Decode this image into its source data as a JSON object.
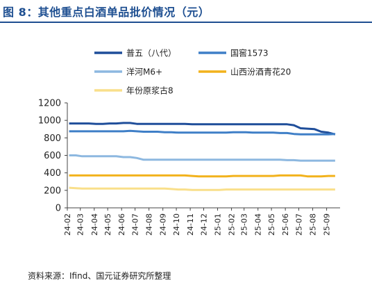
{
  "figure": {
    "title": "图 8：其他重点白酒单品批价情况（元）",
    "source": "资料来源：Ifind、国元证券研究所整理"
  },
  "chart_data": {
    "type": "line",
    "title": "",
    "xlabel": "",
    "ylabel": "",
    "ylim": [
      0,
      1200
    ],
    "y_ticks": [
      0,
      200,
      400,
      600,
      800,
      1000,
      1200
    ],
    "x_tick_labels": [
      "24-02",
      "24-03",
      "24-04",
      "24-05",
      "24-06",
      "24-07",
      "24-08",
      "24-09",
      "24-10",
      "24-11",
      "24-12",
      "25-01",
      "25-02",
      "25-03",
      "25-04",
      "25-05",
      "25-06",
      "25-07",
      "25-08",
      "25-09"
    ],
    "grid": false,
    "legend_position": "top",
    "series": [
      {
        "name": "普五（八代）",
        "color": "#1f4e9a",
        "x": [
          "24-02-05",
          "24-02-20",
          "24-03-05",
          "24-03-20",
          "24-04-05",
          "24-04-20",
          "24-05-05",
          "24-05-20",
          "24-06-05",
          "24-06-20",
          "24-07-05",
          "24-07-20",
          "24-08-05",
          "24-08-20",
          "24-09-05",
          "24-09-20",
          "24-10-05",
          "24-10-20",
          "24-11-05",
          "24-11-20",
          "24-12-05",
          "24-12-20",
          "25-01-05",
          "25-01-20",
          "25-02-05",
          "25-02-20",
          "25-03-05",
          "25-03-20",
          "25-04-05",
          "25-04-20",
          "25-05-05",
          "25-05-20",
          "25-06-05",
          "25-06-20",
          "25-07-05",
          "25-07-20",
          "25-08-05",
          "25-08-20",
          "25-09-05",
          "25-09-20"
        ],
        "values": [
          965,
          965,
          965,
          965,
          960,
          960,
          965,
          965,
          970,
          970,
          960,
          960,
          960,
          960,
          960,
          960,
          960,
          960,
          955,
          955,
          955,
          955,
          955,
          955,
          955,
          955,
          955,
          955,
          955,
          955,
          955,
          955,
          955,
          945,
          910,
          905,
          900,
          870,
          860,
          840
        ]
      },
      {
        "name": "国窖1573",
        "color": "#3f7fc7",
        "x": [
          "24-02-05",
          "24-02-20",
          "24-03-05",
          "24-03-20",
          "24-04-05",
          "24-04-20",
          "24-05-05",
          "24-05-20",
          "24-06-05",
          "24-06-20",
          "24-07-05",
          "24-07-20",
          "24-08-05",
          "24-08-20",
          "24-09-05",
          "24-09-20",
          "24-10-05",
          "24-10-20",
          "24-11-05",
          "24-11-20",
          "24-12-05",
          "24-12-20",
          "25-01-05",
          "25-01-20",
          "25-02-05",
          "25-02-20",
          "25-03-05",
          "25-03-20",
          "25-04-05",
          "25-04-20",
          "25-05-05",
          "25-05-20",
          "25-06-05",
          "25-06-20",
          "25-07-05",
          "25-07-20",
          "25-08-05",
          "25-08-20",
          "25-09-05",
          "25-09-20"
        ],
        "values": [
          875,
          875,
          875,
          875,
          875,
          875,
          875,
          875,
          875,
          880,
          875,
          870,
          870,
          870,
          865,
          865,
          860,
          860,
          860,
          860,
          860,
          860,
          860,
          860,
          865,
          865,
          865,
          860,
          860,
          860,
          860,
          855,
          855,
          845,
          840,
          840,
          840,
          840,
          840,
          845
        ]
      },
      {
        "name": "洋河M6+",
        "color": "#8db8e0",
        "x": [
          "24-02-05",
          "24-02-20",
          "24-03-05",
          "24-03-20",
          "24-04-05",
          "24-04-20",
          "24-05-05",
          "24-05-20",
          "24-06-05",
          "24-06-20",
          "24-07-05",
          "24-07-20",
          "24-08-05",
          "24-08-20",
          "24-09-05",
          "24-09-20",
          "24-10-05",
          "24-10-20",
          "24-11-05",
          "24-11-20",
          "24-12-05",
          "24-12-20",
          "25-01-05",
          "25-01-20",
          "25-02-05",
          "25-02-20",
          "25-03-05",
          "25-03-20",
          "25-04-05",
          "25-04-20",
          "25-05-05",
          "25-05-20",
          "25-06-05",
          "25-06-20",
          "25-07-05",
          "25-07-20",
          "25-08-05",
          "25-08-20",
          "25-09-05",
          "25-09-20"
        ],
        "values": [
          600,
          600,
          590,
          590,
          590,
          590,
          590,
          590,
          580,
          580,
          570,
          550,
          550,
          550,
          550,
          550,
          550,
          550,
          550,
          550,
          550,
          550,
          550,
          550,
          550,
          550,
          550,
          550,
          550,
          550,
          550,
          550,
          545,
          545,
          540,
          540,
          540,
          540,
          540,
          540
        ]
      },
      {
        "name": "山西汾酒青花20",
        "color": "#f2b21c",
        "x": [
          "24-02-05",
          "24-02-20",
          "24-03-05",
          "24-03-20",
          "24-04-05",
          "24-04-20",
          "24-05-05",
          "24-05-20",
          "24-06-05",
          "24-06-20",
          "24-07-05",
          "24-07-20",
          "24-08-05",
          "24-08-20",
          "24-09-05",
          "24-09-20",
          "24-10-05",
          "24-10-20",
          "24-11-05",
          "24-11-20",
          "24-12-05",
          "24-12-20",
          "25-01-05",
          "25-01-20",
          "25-02-05",
          "25-02-20",
          "25-03-05",
          "25-03-20",
          "25-04-05",
          "25-04-20",
          "25-05-05",
          "25-05-20",
          "25-06-05",
          "25-06-20",
          "25-07-05",
          "25-07-20",
          "25-08-05",
          "25-08-20",
          "25-09-05",
          "25-09-20"
        ],
        "values": [
          370,
          370,
          370,
          370,
          370,
          370,
          370,
          370,
          370,
          370,
          370,
          370,
          370,
          370,
          370,
          370,
          370,
          370,
          365,
          360,
          360,
          360,
          360,
          360,
          365,
          365,
          365,
          365,
          365,
          365,
          365,
          370,
          370,
          370,
          370,
          360,
          360,
          360,
          365,
          365
        ]
      },
      {
        "name": "年份原浆古8",
        "color": "#f9df8a",
        "x": [
          "24-02-05",
          "24-02-20",
          "24-03-05",
          "24-03-20",
          "24-04-05",
          "24-04-20",
          "24-05-05",
          "24-05-20",
          "24-06-05",
          "24-06-20",
          "24-07-05",
          "24-07-20",
          "24-08-05",
          "24-08-20",
          "24-09-05",
          "24-09-20",
          "24-10-05",
          "24-10-20",
          "24-11-05",
          "24-11-20",
          "24-12-05",
          "24-12-20",
          "25-01-05",
          "25-01-20",
          "25-02-05",
          "25-02-20",
          "25-03-05",
          "25-03-20",
          "25-04-05",
          "25-04-20",
          "25-05-05",
          "25-05-20",
          "25-06-05",
          "25-06-20",
          "25-07-05",
          "25-07-20",
          "25-08-05",
          "25-08-20",
          "25-09-05",
          "25-09-20"
        ],
        "values": [
          230,
          225,
          220,
          220,
          220,
          220,
          220,
          220,
          220,
          220,
          220,
          220,
          220,
          220,
          220,
          215,
          210,
          210,
          205,
          205,
          205,
          205,
          205,
          210,
          210,
          210,
          210,
          210,
          210,
          210,
          210,
          210,
          210,
          210,
          210,
          210,
          210,
          210,
          210,
          210
        ]
      }
    ]
  }
}
